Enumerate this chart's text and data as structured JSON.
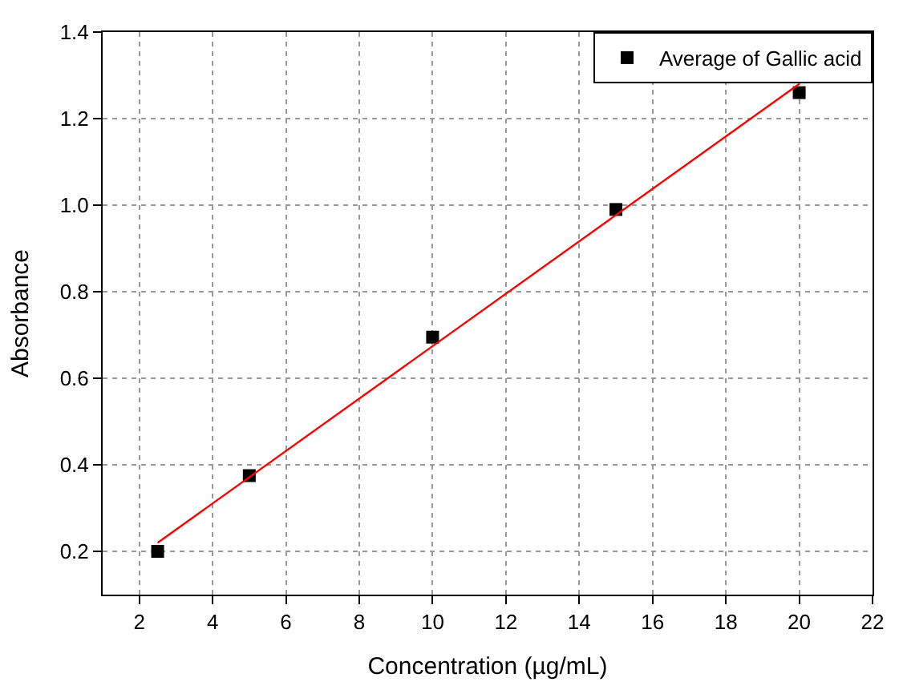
{
  "chart_data": {
    "type": "scatter",
    "xlabel": "Concentration (µg/mL)",
    "ylabel": "Absorbance",
    "x": [
      2.5,
      5,
      10,
      15,
      20
    ],
    "series": [
      {
        "name": "Average of Gallic acid",
        "color": "#000000",
        "values": [
          0.2,
          0.375,
          0.695,
          0.99,
          1.26
        ],
        "marker": "square"
      },
      {
        "type": "line",
        "color": "#ff0000",
        "x": [
          2.5,
          20
        ],
        "values": [
          0.22,
          1.28
        ],
        "marker": "none",
        "line_style": "solid"
      }
    ],
    "xlim": [
      1,
      22
    ],
    "xticks": [
      2,
      4,
      6,
      8,
      10,
      12,
      14,
      16,
      18,
      20,
      22
    ],
    "ylim": [
      0.1,
      1.4
    ],
    "yticks": [
      0.2,
      0.4,
      0.6,
      0.8,
      {
        "value": 1,
        "label": "1.0"
      },
      1.2,
      1.4
    ],
    "grid": true,
    "legend": "top right"
  }
}
